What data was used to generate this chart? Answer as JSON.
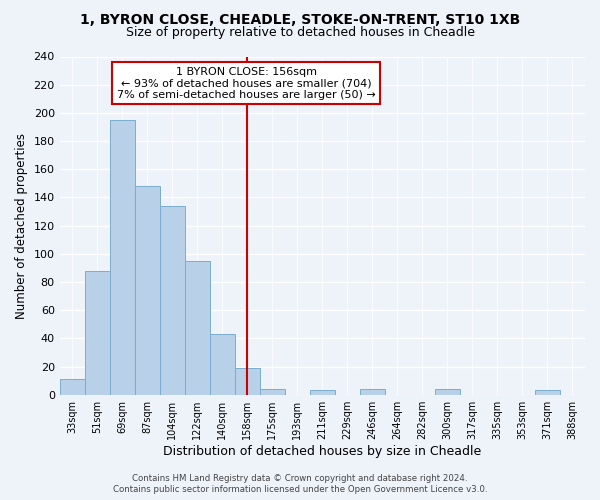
{
  "title_line1": "1, BYRON CLOSE, CHEADLE, STOKE-ON-TRENT, ST10 1XB",
  "title_line2": "Size of property relative to detached houses in Cheadle",
  "xlabel": "Distribution of detached houses by size in Cheadle",
  "ylabel": "Number of detached properties",
  "bin_labels": [
    "33sqm",
    "51sqm",
    "69sqm",
    "87sqm",
    "104sqm",
    "122sqm",
    "140sqm",
    "158sqm",
    "175sqm",
    "193sqm",
    "211sqm",
    "229sqm",
    "246sqm",
    "264sqm",
    "282sqm",
    "300sqm",
    "317sqm",
    "335sqm",
    "353sqm",
    "371sqm",
    "388sqm"
  ],
  "bar_heights": [
    11,
    88,
    195,
    148,
    134,
    95,
    43,
    19,
    4,
    0,
    3,
    0,
    4,
    0,
    0,
    4,
    0,
    0,
    0,
    3,
    0
  ],
  "bar_color": "#b8d0e8",
  "bar_edge_color": "#7aadd0",
  "vline_color": "#cc0000",
  "annotation_title": "1 BYRON CLOSE: 156sqm",
  "annotation_line1": "← 93% of detached houses are smaller (704)",
  "annotation_line2": "7% of semi-detached houses are larger (50) →",
  "annotation_box_color": "#ffffff",
  "annotation_box_edge": "#cc0000",
  "ylim": [
    0,
    240
  ],
  "yticks": [
    0,
    20,
    40,
    60,
    80,
    100,
    120,
    140,
    160,
    180,
    200,
    220,
    240
  ],
  "footer_line1": "Contains HM Land Registry data © Crown copyright and database right 2024.",
  "footer_line2": "Contains public sector information licensed under the Open Government Licence v3.0.",
  "bg_color": "#eef2f9",
  "title_fontsize": 10,
  "subtitle_fontsize": 9,
  "ylabel_fontsize": 8.5,
  "xlabel_fontsize": 9
}
